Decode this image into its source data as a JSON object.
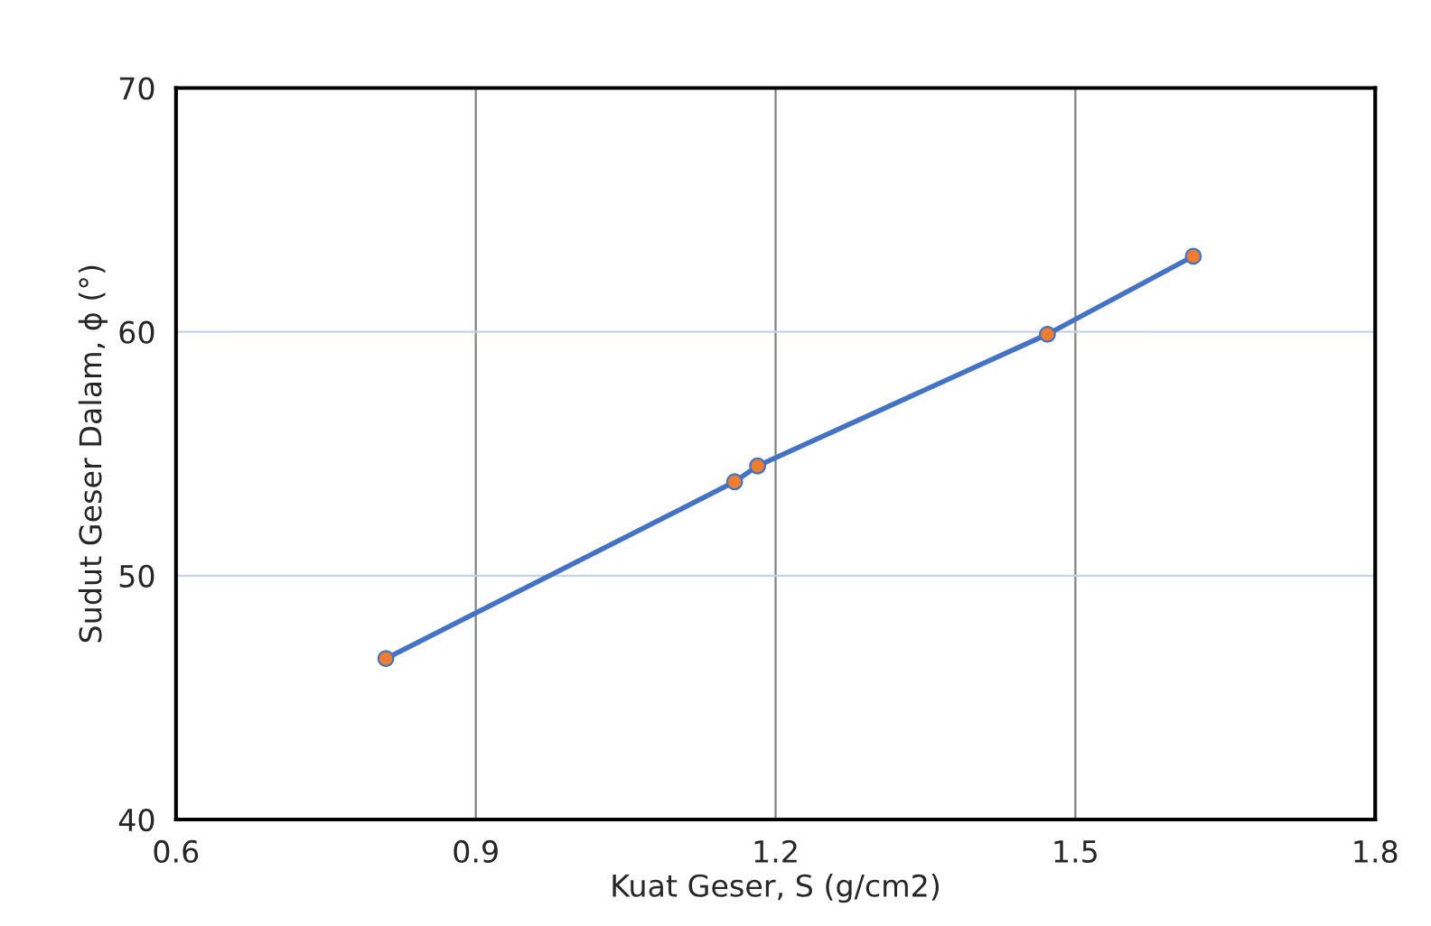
{
  "chart_data": {
    "type": "line",
    "xlabel": "Kuat Geser, S (g/cm2)",
    "ylabel": "Sudut Geser Dalam, ϕ (°)",
    "x": [
      0.81,
      1.159,
      1.182,
      1.472,
      1.618
    ],
    "series": [
      {
        "color": "#4472c4",
        "values": [
          46.6,
          53.85,
          54.5,
          59.9,
          63.1
        ]
      }
    ],
    "xlim": [
      0.6,
      1.8
    ],
    "xticks": [
      0.6,
      0.9,
      1.2,
      1.5,
      1.8
    ],
    "ylim": [
      40,
      70
    ],
    "yticks": [
      40,
      50,
      60,
      70
    ],
    "grid": true,
    "marker": "circle",
    "line_style": "solid"
  }
}
